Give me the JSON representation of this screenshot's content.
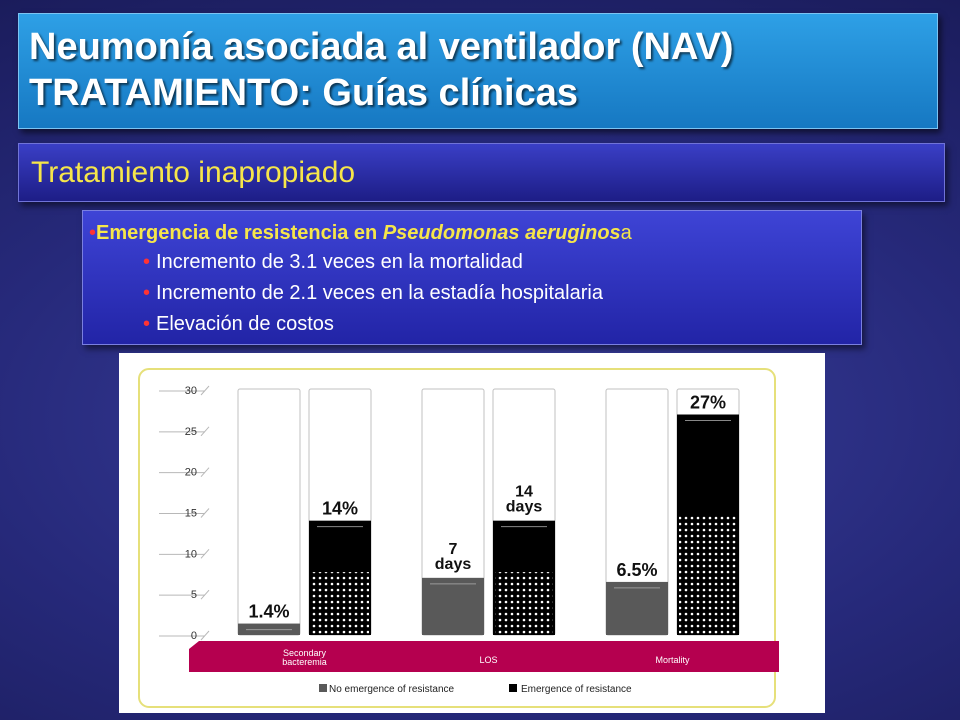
{
  "slide": {
    "title_line1": "Neumonía asociada al ventilador (NAV)",
    "title_line2": "TRATAMIENTO: Guías clínicas",
    "subtitle": "Tratamiento  inapropiado",
    "main_bullet": {
      "text": "Emergencia de resistencia en ",
      "italic": "Pseudomonas aeruginos",
      "tail": "a"
    },
    "sub_bullets": [
      "Incremento de 3.1 veces en la mortalidad",
      "Incremento de 2.1 veces en la estadía hospitalaria",
      "Elevación de costos"
    ]
  },
  "chart_data": {
    "type": "bar",
    "ylim": [
      0,
      30
    ],
    "yticks": [
      "0",
      "5",
      "10",
      "15",
      "20",
      "25",
      "30"
    ],
    "categories": [
      "Secondary\nbacteremia",
      "LOS",
      "Mortality"
    ],
    "series": [
      {
        "name": "No emergence of resistance",
        "values": [
          1.4,
          7,
          6.5
        ],
        "labels": [
          "1.4%",
          "7\ndays",
          "6.5%"
        ]
      },
      {
        "name": "Emergence of resistance",
        "values": [
          14,
          14,
          27
        ],
        "labels": [
          "14%",
          "14\ndays",
          "27%"
        ]
      }
    ],
    "colors": {
      "no_resistance": "#595959",
      "resistance": "#000000",
      "band": "#b5004f",
      "frame": "#e6e07a"
    }
  }
}
